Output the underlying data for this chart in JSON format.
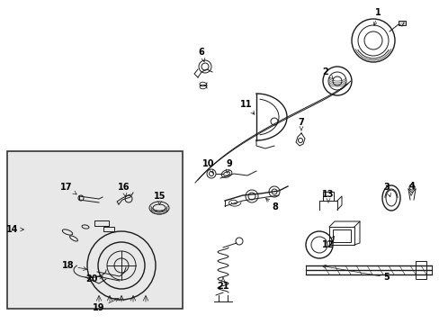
{
  "bg_color": "#ffffff",
  "fig_width": 4.89,
  "fig_height": 3.6,
  "dpi": 100,
  "line_color": "#1a1a1a",
  "label_fontsize": 7.0,
  "label_color": "#000000",
  "inset_bg": "#e8e8e8",
  "inset_border": "#333333"
}
